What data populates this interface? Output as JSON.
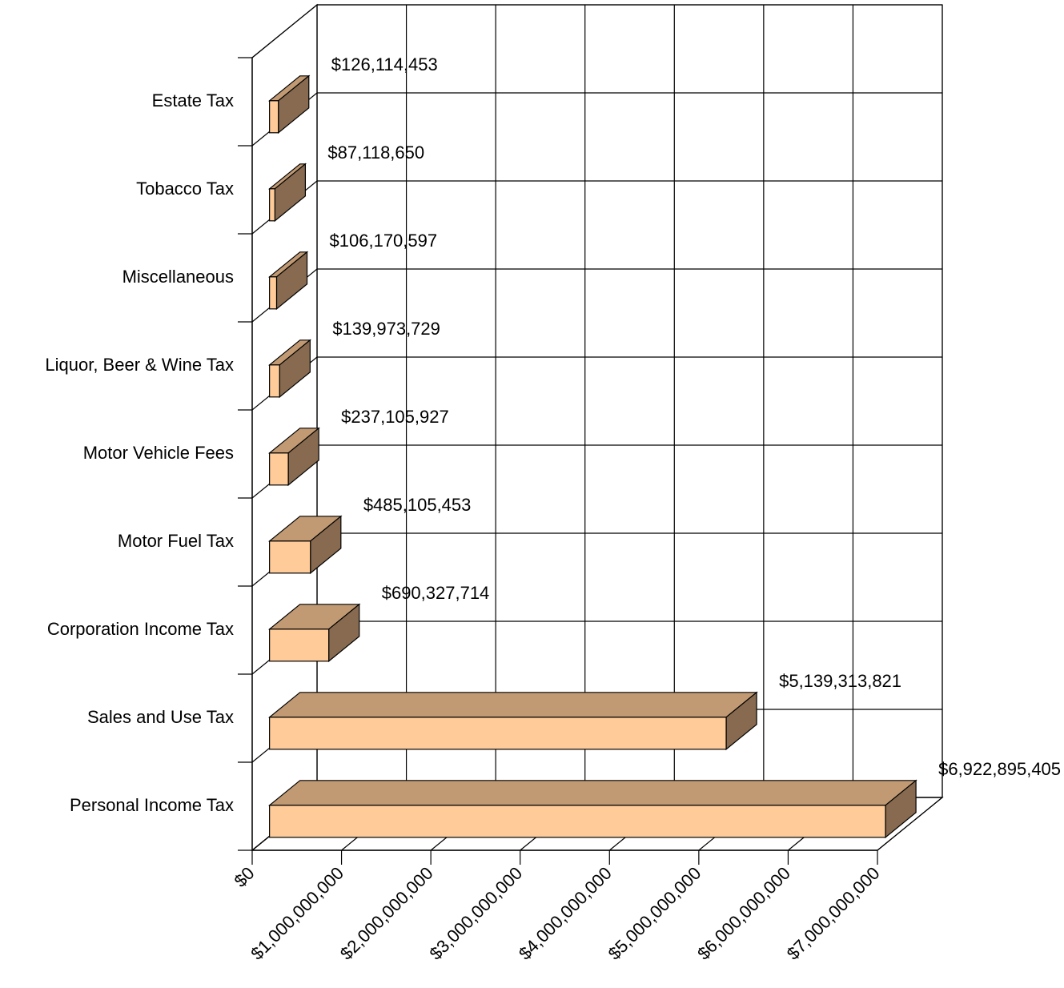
{
  "chart_data": {
    "type": "bar",
    "orientation": "horizontal",
    "style": "3d",
    "title": "",
    "xlabel": "",
    "ylabel": "",
    "xlim": [
      0,
      7000000000
    ],
    "grid": true,
    "legend": "none",
    "categories": [
      "Estate Tax",
      "Tobacco Tax",
      "Miscellaneous",
      "Liquor, Beer & Wine Tax",
      "Motor Vehicle Fees",
      "Motor Fuel Tax",
      "Corporation Income Tax",
      "Sales and Use Tax",
      "Personal Income Tax"
    ],
    "values": [
      126114453,
      87118650,
      106170597,
      139973729,
      237105927,
      485105453,
      690327714,
      5139313821,
      6922895405
    ],
    "value_labels": [
      "$126,114,453",
      "$87,118,650",
      "$106,170,597",
      "$139,973,729",
      "$237,105,927",
      "$485,105,453",
      "$690,327,714",
      "$5,139,313,821",
      "$6,922,895,405"
    ],
    "x_ticks": [
      0,
      1000000000,
      2000000000,
      3000000000,
      4000000000,
      5000000000,
      6000000000,
      7000000000
    ],
    "x_tick_labels": [
      "$0",
      "$1,000,000,000",
      "$2,000,000,000",
      "$3,000,000,000",
      "$4,000,000,000",
      "$5,000,000,000",
      "$6,000,000,000",
      "$7,000,000,000"
    ],
    "colors": {
      "front": "#FFCC99",
      "top": "#C19A73",
      "side": "#876A4F",
      "edge": "#000000",
      "grid": "#000000"
    }
  }
}
